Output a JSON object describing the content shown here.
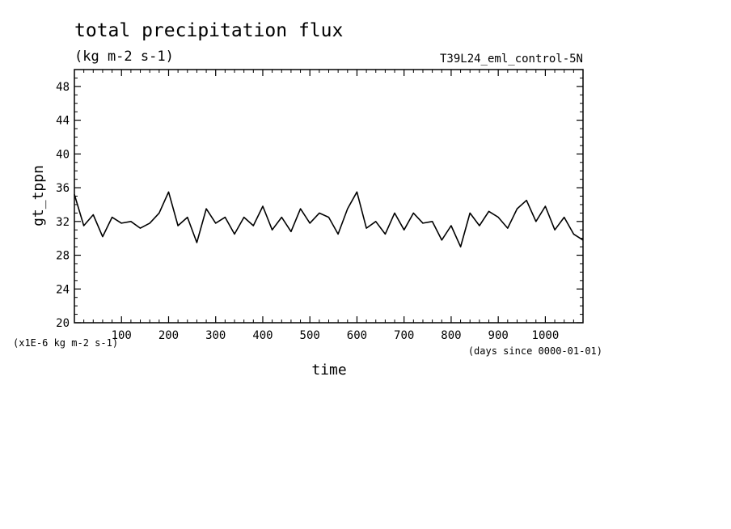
{
  "chart_data": {
    "type": "line",
    "title": "total precipitation flux",
    "subtitle": "(kg m-2 s-1)",
    "run_label": "T39L24_eml_control-5N",
    "xlabel": "time",
    "x_units_label": "(days since 0000-01-01)",
    "ylabel": "gt_tppn",
    "y_scale_label": "(x1E-6 kg m-2 s-1)",
    "xlim": [
      0,
      1080
    ],
    "ylim": [
      20,
      50
    ],
    "x_ticks": [
      100,
      200,
      300,
      400,
      500,
      600,
      700,
      800,
      900,
      1000
    ],
    "y_ticks": [
      20,
      24,
      28,
      32,
      36,
      40,
      44,
      48
    ],
    "grid": false,
    "series": [
      {
        "color": "#000000",
        "x": [
          0,
          20,
          40,
          60,
          80,
          100,
          120,
          140,
          160,
          180,
          200,
          220,
          240,
          260,
          280,
          300,
          320,
          340,
          360,
          380,
          400,
          420,
          440,
          460,
          480,
          500,
          520,
          540,
          560,
          580,
          600,
          620,
          640,
          660,
          680,
          700,
          720,
          740,
          760,
          780,
          800,
          820,
          840,
          860,
          880,
          900,
          920,
          940,
          960,
          980,
          1000,
          1020,
          1040,
          1060,
          1080
        ],
        "y": [
          35.2,
          31.5,
          32.8,
          30.2,
          32.5,
          31.8,
          32.0,
          31.2,
          31.8,
          33.0,
          35.5,
          31.5,
          32.5,
          29.5,
          33.5,
          31.8,
          32.5,
          30.5,
          32.5,
          31.5,
          33.8,
          31.0,
          32.5,
          30.8,
          33.5,
          31.8,
          33.0,
          32.5,
          30.5,
          33.5,
          35.5,
          31.2,
          32.0,
          30.5,
          33.0,
          31.0,
          33.0,
          31.8,
          32.0,
          29.8,
          31.5,
          29.0,
          33.0,
          31.5,
          33.2,
          32.5,
          31.2,
          33.5,
          34.5,
          32.0,
          33.8,
          31.0,
          32.5,
          30.5,
          29.8
        ]
      }
    ]
  }
}
